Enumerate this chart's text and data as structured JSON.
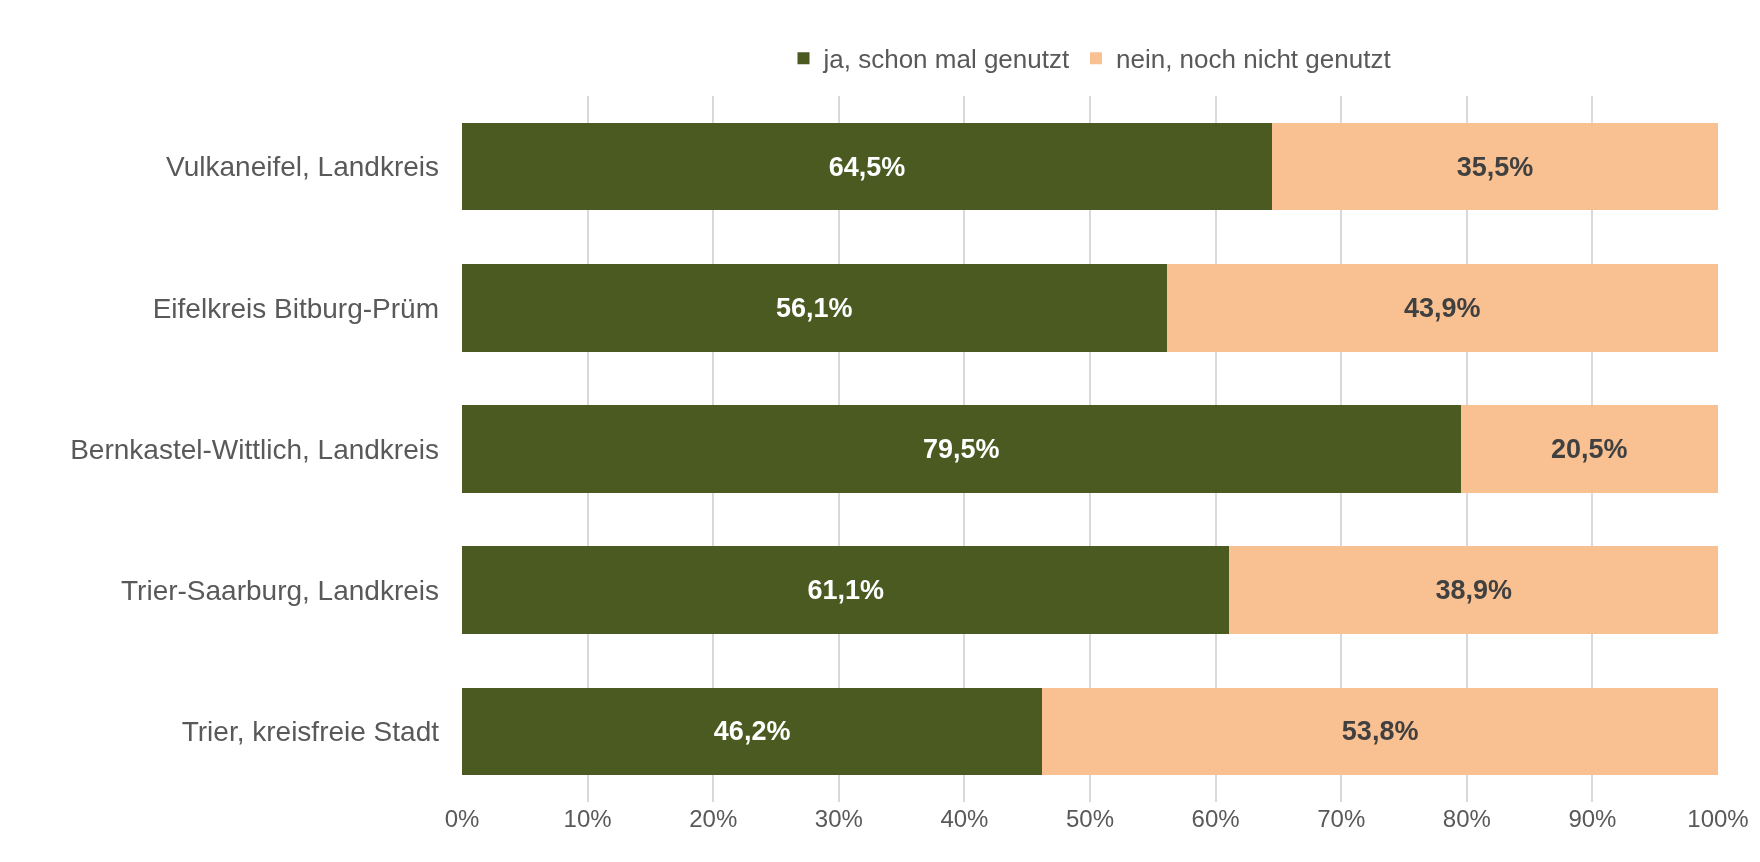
{
  "chart_data": {
    "type": "bar",
    "orientation": "horizontal",
    "stacked": true,
    "categories": [
      "Vulkaneifel, Landkreis",
      "Eifelkreis Bitburg-Prüm",
      "Bernkastel-Wittlich, Landkreis",
      "Trier-Saarburg, Landkreis",
      "Trier, kreisfreie Stadt"
    ],
    "series": [
      {
        "name": "ja, schon mal genutzt",
        "color": "#4a5a20",
        "values": [
          64.5,
          56.1,
          79.5,
          61.1,
          46.2
        ],
        "value_labels": [
          "64,5%",
          "56,1%",
          "79,5%",
          "61,1%",
          "46,2%"
        ]
      },
      {
        "name": "nein, noch nicht genutzt",
        "color": "#f9c192",
        "values": [
          35.5,
          43.9,
          20.5,
          38.9,
          53.8
        ],
        "value_labels": [
          "35,5%",
          "43,9%",
          "20,5%",
          "38,9%",
          "53,8%"
        ]
      }
    ],
    "xlim": [
      0,
      100
    ],
    "xticks": [
      {
        "value": 0,
        "label": "0%"
      },
      {
        "value": 10,
        "label": "10%"
      },
      {
        "value": 20,
        "label": "20%"
      },
      {
        "value": 30,
        "label": "30%"
      },
      {
        "value": 40,
        "label": "40%"
      },
      {
        "value": 50,
        "label": "50%"
      },
      {
        "value": 60,
        "label": "60%"
      },
      {
        "value": 70,
        "label": "70%"
      },
      {
        "value": 80,
        "label": "80%"
      },
      {
        "value": 90,
        "label": "90%"
      },
      {
        "value": 100,
        "label": "100%"
      }
    ],
    "grid": "x",
    "legend": "top"
  }
}
